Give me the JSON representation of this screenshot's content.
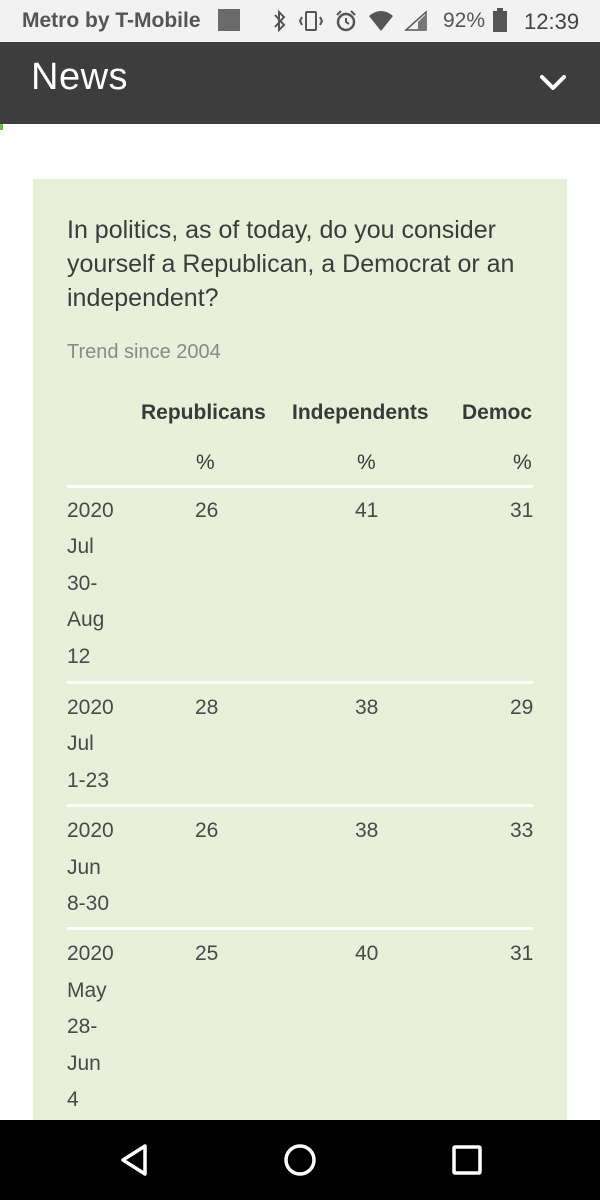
{
  "status_bar": {
    "carrier": "Metro by T-Mobile",
    "battery_percent": "92%",
    "time": "12:39",
    "icons": [
      "bluetooth-icon",
      "vibrate-icon",
      "alarm-icon",
      "wifi-icon",
      "signal-icon",
      "battery-icon"
    ]
  },
  "header": {
    "title": "News",
    "menu_icon": "chevron-down-icon"
  },
  "card": {
    "question": "In politics, as of today, do you consider yourself a Republican, a Democrat or an independent?",
    "trend_label": "Trend since 2004",
    "columns": [
      "Republicans",
      "Independents",
      "Democ"
    ],
    "units": [
      "%",
      "%",
      "%"
    ],
    "rows": [
      {
        "date_lines": [
          "2020",
          "Jul",
          "30-",
          "Aug",
          "12"
        ],
        "republicans": "26",
        "independents": "41",
        "democrats": "31"
      },
      {
        "date_lines": [
          "2020",
          "Jul",
          "1-23"
        ],
        "republicans": "28",
        "independents": "38",
        "democrats": "29"
      },
      {
        "date_lines": [
          "2020",
          "Jun",
          "8-30"
        ],
        "republicans": "26",
        "independents": "38",
        "democrats": "33"
      },
      {
        "date_lines": [
          "2020",
          "May",
          "28-",
          "Jun",
          "4"
        ],
        "republicans": "25",
        "independents": "40",
        "democrats": "31"
      }
    ]
  },
  "nav_bar": {
    "buttons": [
      "back-icon",
      "home-icon",
      "recents-icon"
    ]
  }
}
